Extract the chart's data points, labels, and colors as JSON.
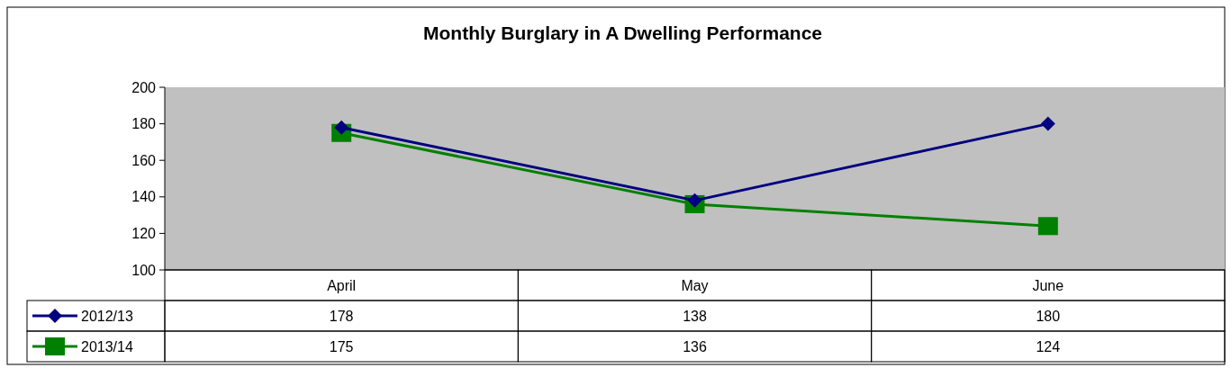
{
  "chart_data": {
    "type": "line",
    "title": "Monthly Burglary in A Dwelling Performance",
    "categories": [
      "April",
      "May",
      "June"
    ],
    "series": [
      {
        "name": "2012/13",
        "color": "#000080",
        "values": [
          178,
          138,
          180
        ],
        "marker": "diamond"
      },
      {
        "name": "2013/14",
        "color": "#008000",
        "values": [
          175,
          136,
          124
        ],
        "marker": "square"
      }
    ],
    "ylim": [
      100,
      200
    ],
    "yticks": [
      100,
      120,
      140,
      160,
      180,
      200
    ],
    "grid": false,
    "legend": "bottom",
    "data_labels": true
  }
}
